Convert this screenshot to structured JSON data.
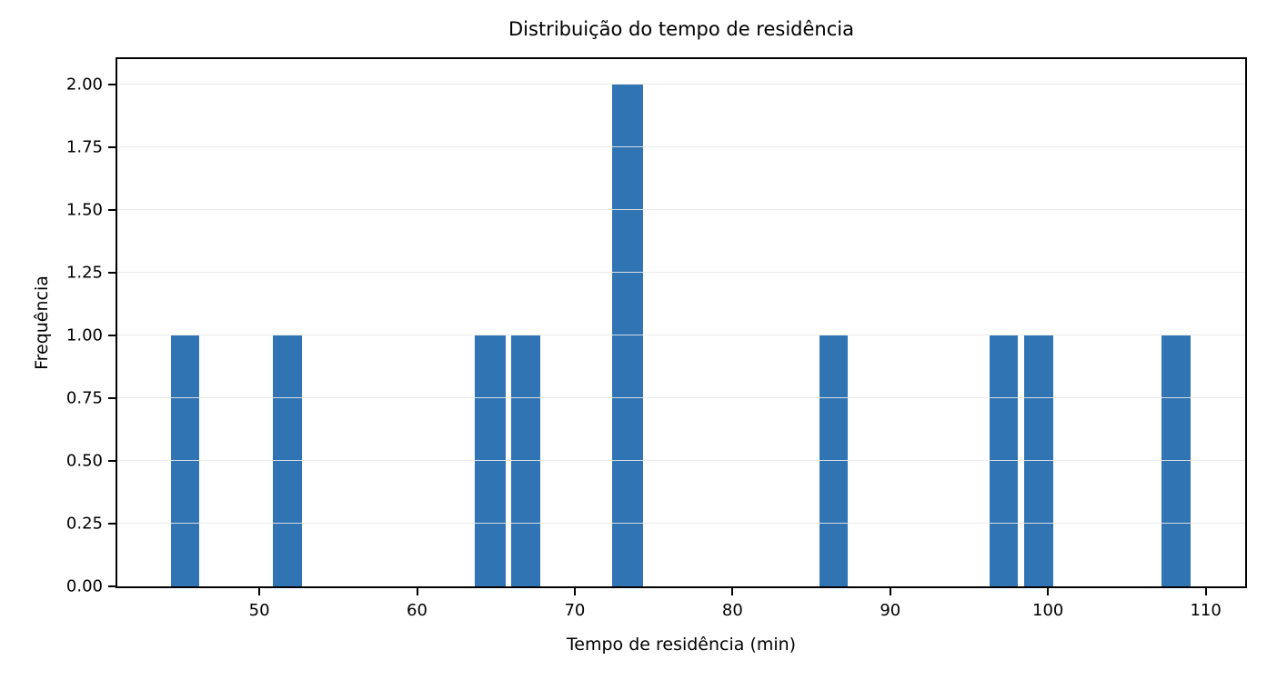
{
  "chart_data": {
    "type": "bar",
    "subtype": "histogram",
    "title": "Distribuição do tempo de residência",
    "xlabel": "Tempo de residência (min)",
    "ylabel": "Frequência",
    "xlim": [
      41.0,
      112.5
    ],
    "ylim": [
      0,
      2.1
    ],
    "x_ticks": [
      50,
      60,
      70,
      80,
      90,
      100,
      110
    ],
    "y_ticks": [
      0,
      0.25,
      0.5,
      0.75,
      1,
      1.25,
      1.5,
      1.75,
      2
    ],
    "y_tick_labels": [
      "0.00",
      "0.25",
      "0.50",
      "0.75",
      "1.00",
      "1.25",
      "1.50",
      "1.75",
      "2.00"
    ],
    "grid": "horizontal",
    "legend_position": "none",
    "bar_color": "#3174b4",
    "grid_color": "#e9e9e9",
    "spine_color": "#000000",
    "text_color": "#000000",
    "bins": [
      {
        "x0": 44.3,
        "x1": 46.3,
        "count": 1
      },
      {
        "x0": 50.8,
        "x1": 52.8,
        "count": 1
      },
      {
        "x0": 63.6,
        "x1": 65.7,
        "count": 1
      },
      {
        "x0": 65.9,
        "x1": 67.9,
        "count": 1
      },
      {
        "x0": 72.3,
        "x1": 74.4,
        "count": 2
      },
      {
        "x0": 85.4,
        "x1": 87.4,
        "count": 1
      },
      {
        "x0": 96.2,
        "x1": 98.2,
        "count": 1
      },
      {
        "x0": 98.4,
        "x1": 100.4,
        "count": 1
      },
      {
        "x0": 107.1,
        "x1": 109.1,
        "count": 1
      }
    ]
  }
}
